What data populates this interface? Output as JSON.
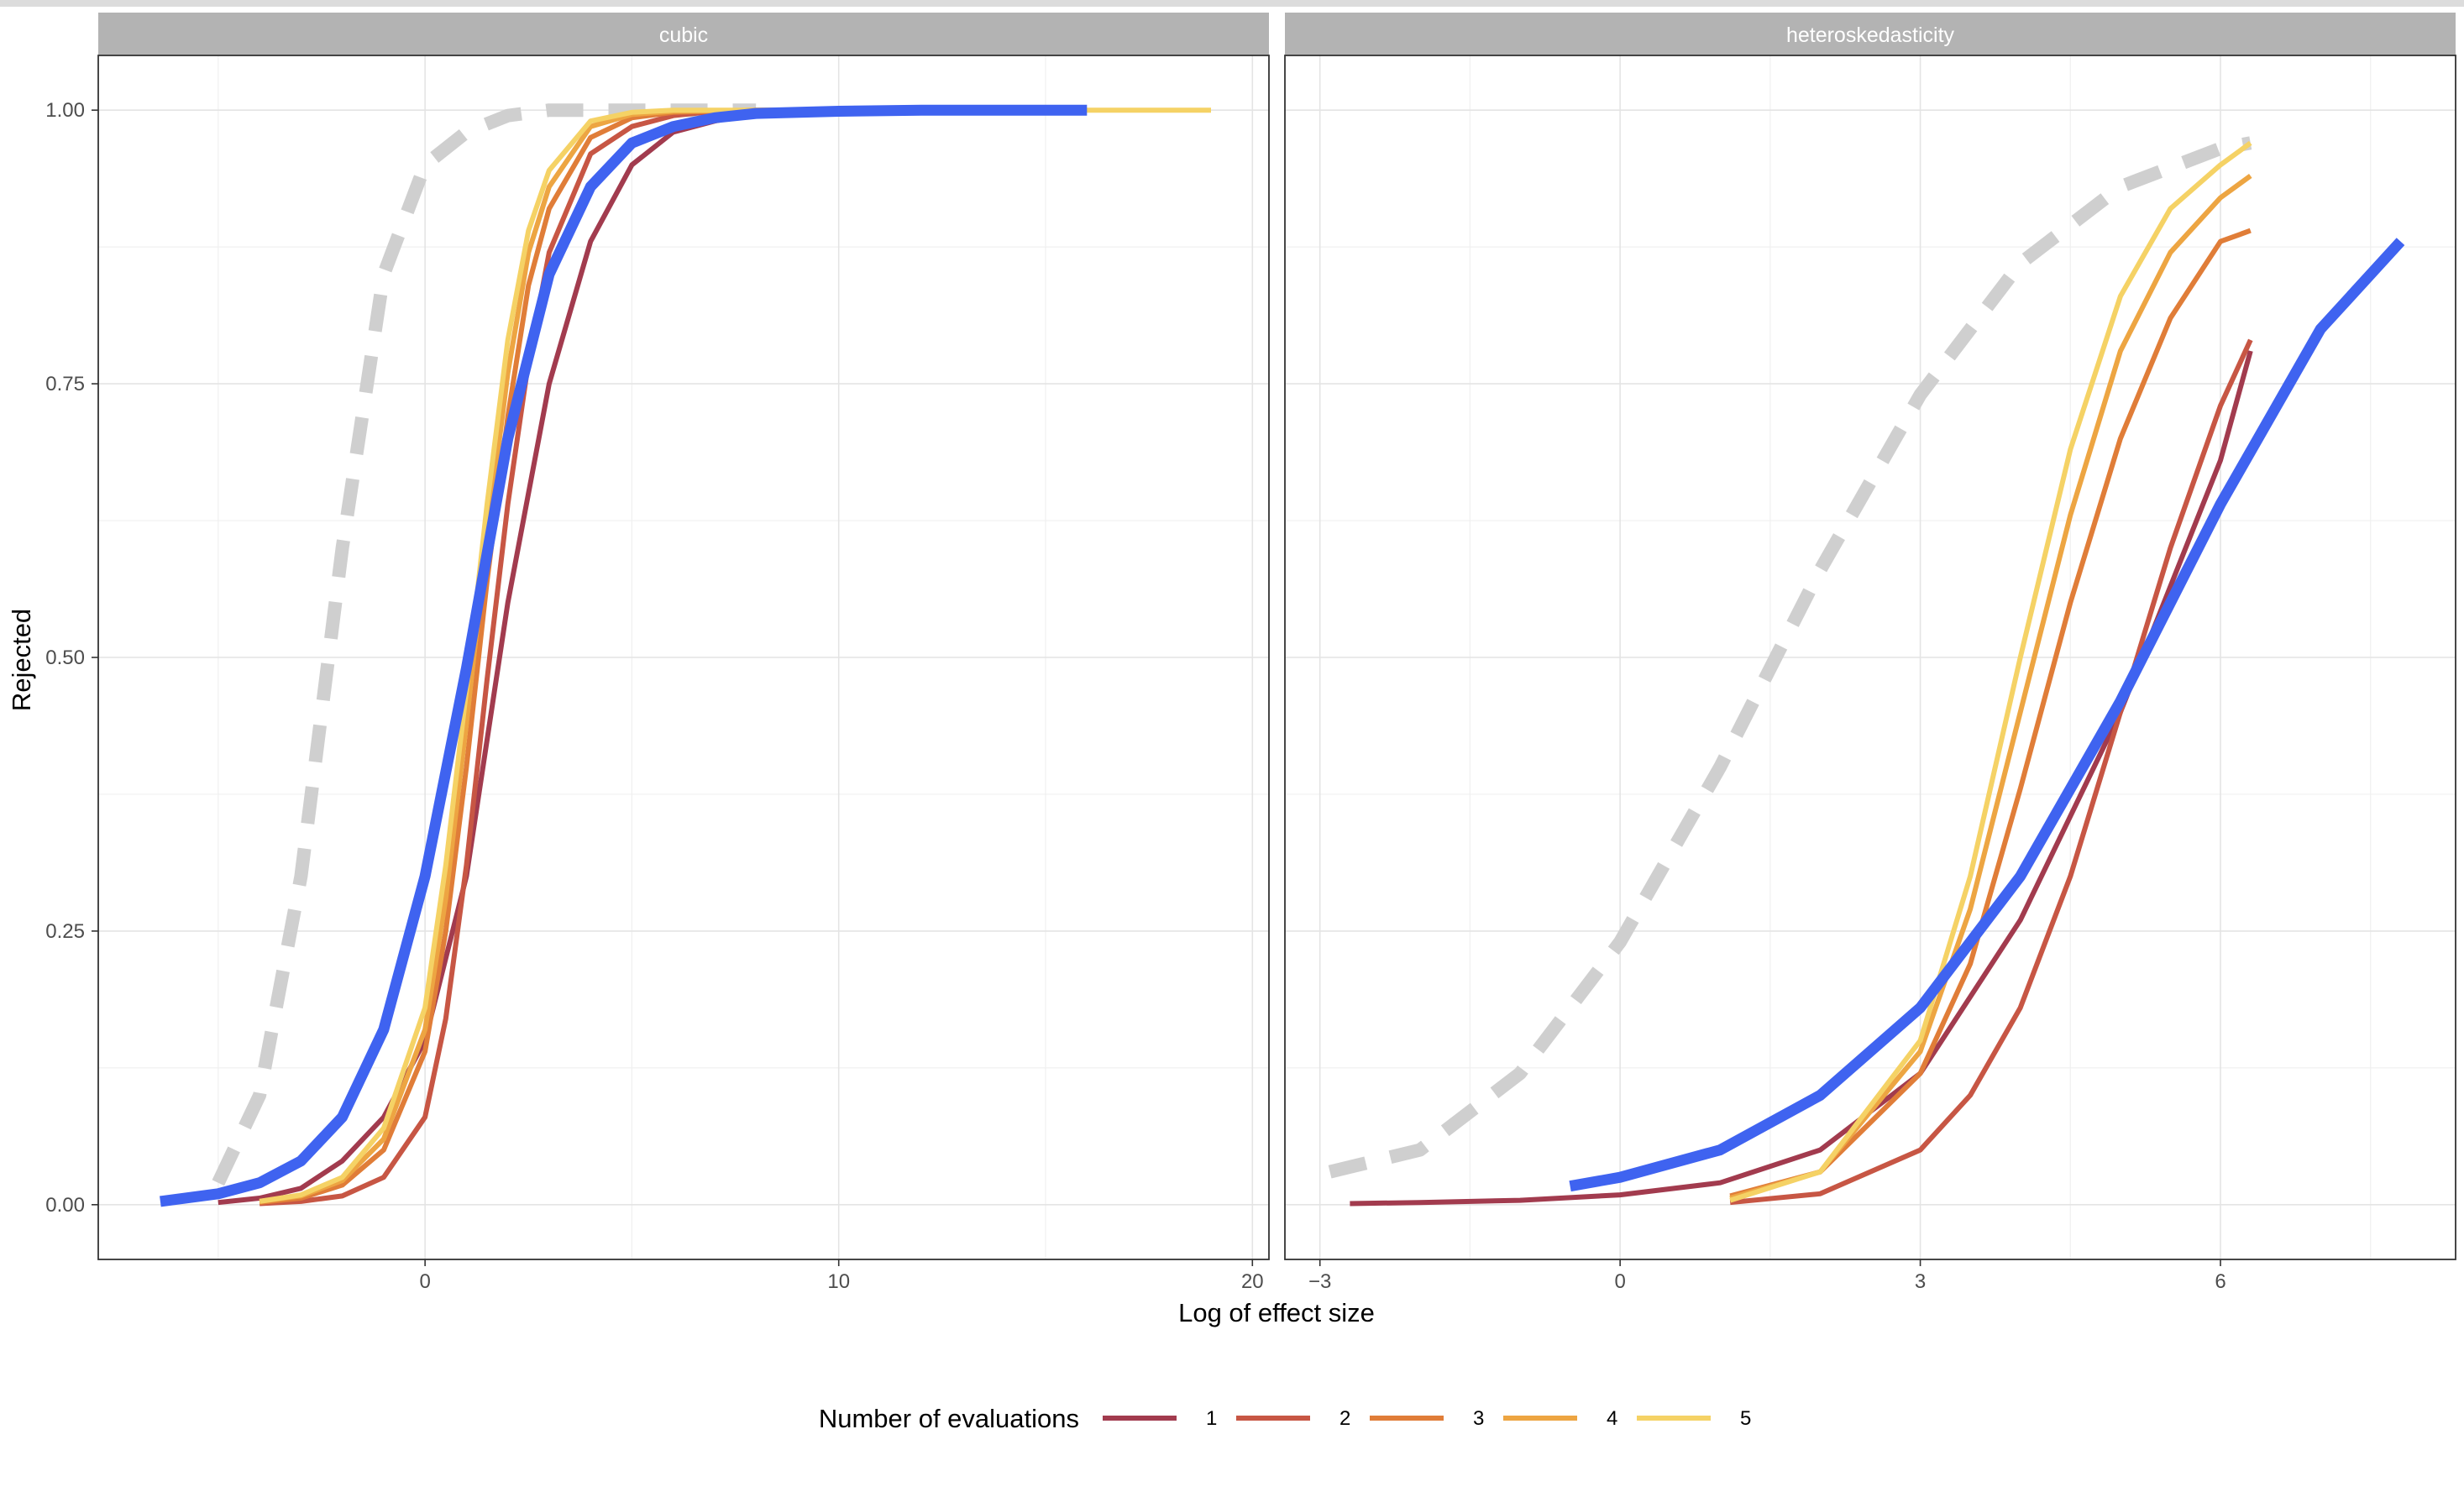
{
  "chart_data": {
    "type": "line",
    "xlabel": "Log of effect size",
    "ylabel": "Rejected",
    "legend": {
      "title": "Number of evaluations",
      "placement": "bottom",
      "entries": [
        {
          "label": "1",
          "color": "#a23b4e"
        },
        {
          "label": "2",
          "color": "#c75644"
        },
        {
          "label": "3",
          "color": "#e07d38"
        },
        {
          "label": "4",
          "color": "#eda542"
        },
        {
          "label": "5",
          "color": "#f5d265"
        }
      ]
    },
    "y_ticks": [
      "0.00",
      "0.25",
      "0.50",
      "0.75",
      "1.00"
    ],
    "ylim": [
      -0.05,
      1.05
    ],
    "grid": true,
    "reference_line_color": "#cfcfcf",
    "fit_line_color": "#3f63f0",
    "facets": [
      {
        "strip": "cubic",
        "xlim": [
          -7.9,
          20.4
        ],
        "x_ticks": [
          0,
          10,
          20
        ],
        "x_tick_labels": [
          "0",
          "10",
          "20"
        ],
        "reference": {
          "x": [
            -5,
            -4,
            -3,
            -2,
            -1,
            0,
            1,
            2,
            3,
            4,
            5,
            6,
            7,
            8
          ],
          "y": [
            0.02,
            0.1,
            0.3,
            0.6,
            0.85,
            0.95,
            0.98,
            0.995,
            1,
            1,
            1,
            1,
            1,
            1
          ]
        },
        "fit": {
          "x": [
            -6.4,
            -5,
            -4,
            -3,
            -2,
            -1,
            0,
            1,
            2,
            3,
            4,
            5,
            6,
            7,
            8,
            10,
            12,
            14,
            16
          ],
          "y": [
            0.003,
            0.01,
            0.02,
            0.04,
            0.08,
            0.16,
            0.3,
            0.49,
            0.7,
            0.85,
            0.93,
            0.97,
            0.985,
            0.993,
            0.997,
            0.999,
            1,
            1,
            1
          ]
        },
        "series": [
          {
            "name": "1",
            "x": [
              -5,
              -4,
              -3,
              -2,
              -1,
              0,
              1,
              2,
              3,
              4,
              5,
              6,
              7,
              8,
              10
            ],
            "y": [
              0.002,
              0.006,
              0.015,
              0.04,
              0.08,
              0.15,
              0.3,
              0.55,
              0.75,
              0.88,
              0.95,
              0.98,
              0.99,
              0.997,
              1
            ]
          },
          {
            "name": "2",
            "x": [
              -4,
              -3,
              -2,
              -1,
              0,
              0.5,
              1,
              1.5,
              2,
              2.5,
              3,
              4,
              5,
              6,
              7,
              8,
              10
            ],
            "y": [
              0.001,
              0.003,
              0.008,
              0.025,
              0.08,
              0.17,
              0.31,
              0.48,
              0.64,
              0.77,
              0.87,
              0.96,
              0.985,
              0.995,
              0.999,
              1,
              1
            ]
          },
          {
            "name": "3",
            "x": [
              -4,
              -3,
              -2,
              -1,
              0,
              0.5,
              1,
              1.5,
              2,
              2.5,
              3,
              4,
              5,
              6,
              8,
              10,
              12
            ],
            "y": [
              0.002,
              0.006,
              0.018,
              0.05,
              0.14,
              0.25,
              0.4,
              0.57,
              0.72,
              0.84,
              0.91,
              0.975,
              0.993,
              0.998,
              1,
              1,
              1
            ]
          },
          {
            "name": "4",
            "x": [
              -4,
              -3,
              -2,
              -1,
              0,
              0.5,
              1,
              1.5,
              2,
              2.5,
              3,
              4,
              5,
              6,
              8,
              10,
              14
            ],
            "y": [
              0.003,
              0.008,
              0.022,
              0.06,
              0.16,
              0.28,
              0.44,
              0.61,
              0.76,
              0.87,
              0.93,
              0.985,
              0.996,
              0.999,
              1,
              1,
              1
            ]
          },
          {
            "name": "5",
            "x": [
              -4,
              -3,
              -2,
              -1,
              0,
              0.5,
              1,
              1.5,
              2,
              2.5,
              3,
              4,
              5,
              6,
              8,
              10,
              14,
              19
            ],
            "y": [
              0.003,
              0.009,
              0.025,
              0.07,
              0.18,
              0.31,
              0.47,
              0.64,
              0.79,
              0.89,
              0.945,
              0.99,
              0.998,
              1,
              1,
              1,
              1,
              1
            ]
          }
        ]
      },
      {
        "strip": "heteroskedasticity",
        "xlim": [
          -3.35,
          8.35
        ],
        "x_ticks": [
          -3,
          0,
          3,
          6
        ],
        "x_tick_labels": [
          "−3",
          "0",
          "3",
          "6"
        ],
        "reference": {
          "x": [
            -2.9,
            -2,
            -1,
            0,
            1,
            2,
            3,
            4,
            5,
            6,
            6.3
          ],
          "y": [
            0.03,
            0.05,
            0.12,
            0.24,
            0.4,
            0.58,
            0.74,
            0.86,
            0.93,
            0.965,
            0.97
          ]
        },
        "fit": {
          "x": [
            -0.5,
            0,
            1,
            2,
            3,
            4,
            5,
            6,
            7,
            7.8
          ],
          "y": [
            0.017,
            0.025,
            0.05,
            0.1,
            0.18,
            0.3,
            0.46,
            0.64,
            0.8,
            0.88
          ]
        },
        "series": [
          {
            "name": "1",
            "x": [
              -2.7,
              -2,
              -1,
              0,
              1,
              2,
              3,
              4,
              5,
              6,
              6.3
            ],
            "y": [
              0.001,
              0.002,
              0.004,
              0.009,
              0.02,
              0.05,
              0.12,
              0.26,
              0.45,
              0.68,
              0.78
            ]
          },
          {
            "name": "2",
            "x": [
              1.1,
              2,
              3,
              3.5,
              4,
              4.5,
              5,
              5.5,
              6,
              6.3
            ],
            "y": [
              0.002,
              0.01,
              0.05,
              0.1,
              0.18,
              0.3,
              0.45,
              0.6,
              0.73,
              0.79
            ]
          },
          {
            "name": "3",
            "x": [
              1.1,
              2,
              3,
              3.5,
              4,
              4.5,
              5,
              5.5,
              6,
              6.3
            ],
            "y": [
              0.008,
              0.03,
              0.12,
              0.22,
              0.38,
              0.55,
              0.7,
              0.81,
              0.88,
              0.89
            ]
          },
          {
            "name": "4",
            "x": [
              1.1,
              2,
              3,
              3.5,
              4,
              4.5,
              5,
              5.5,
              6,
              6.3
            ],
            "y": [
              0.006,
              0.03,
              0.14,
              0.27,
              0.45,
              0.63,
              0.78,
              0.87,
              0.92,
              0.94
            ]
          },
          {
            "name": "5",
            "x": [
              1.1,
              2,
              3,
              3.5,
              4,
              4.5,
              5,
              5.5,
              6,
              6.3
            ],
            "y": [
              0.004,
              0.03,
              0.15,
              0.3,
              0.5,
              0.69,
              0.83,
              0.91,
              0.95,
              0.97
            ]
          }
        ]
      }
    ]
  }
}
